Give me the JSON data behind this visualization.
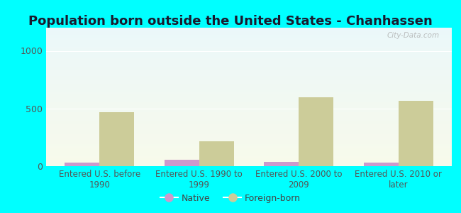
{
  "title": "Population born outside the United States - Chanhassen",
  "categories": [
    "Entered U.S. before\n1990",
    "Entered U.S. 1990 to\n1999",
    "Entered U.S. 2000 to\n2009",
    "Entered U.S. 2010 or\nlater"
  ],
  "native_values": [
    30,
    55,
    35,
    30
  ],
  "foreign_values": [
    470,
    215,
    600,
    565
  ],
  "native_color": "#cc99cc",
  "foreign_color": "#cccc99",
  "ylim": [
    0,
    1200
  ],
  "yticks": [
    0,
    500,
    1000
  ],
  "background_outer": "#00FFFF",
  "bar_width": 0.35,
  "title_fontsize": 13,
  "label_fontsize": 8.5,
  "tick_fontsize": 9,
  "legend_labels": [
    "Native",
    "Foreign-born"
  ],
  "watermark": "City-Data.com",
  "title_color": "#1a1a2e"
}
